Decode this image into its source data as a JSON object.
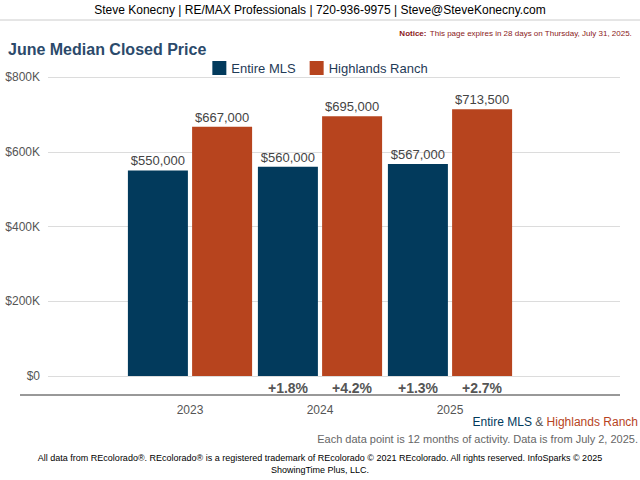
{
  "chart_data": {
    "type": "bar",
    "header": "Steve Konecny | RE/MAX Professionals | 720-936-9975 | Steve@SteveKonecny.com",
    "notice": {
      "label": "Notice:",
      "text": "This page expires in 28 days on Thursday, July 31, 2025."
    },
    "title": "June Median Closed Price",
    "categories": [
      "2023",
      "2024",
      "2025"
    ],
    "series": [
      {
        "name": "Entire MLS",
        "color": "#023a5c",
        "values": [
          550000,
          560000,
          567000
        ],
        "value_labels": [
          "$550,000",
          "$560,000",
          "$567,000"
        ],
        "change_labels": [
          null,
          "+1.8%",
          "+1.3%"
        ]
      },
      {
        "name": "Highlands Ranch",
        "color": "#b7441e",
        "values": [
          667000,
          695000,
          713500
        ],
        "value_labels": [
          "$667,000",
          "$695,000",
          "$713,500"
        ],
        "change_labels": [
          null,
          "+4.2%",
          "+2.7%"
        ]
      }
    ],
    "ylim": [
      0,
      800000
    ],
    "yticks": [
      {
        "value": 0,
        "label": "$0"
      },
      {
        "value": 200000,
        "label": "$200K"
      },
      {
        "value": 400000,
        "label": "$400K"
      },
      {
        "value": 600000,
        "label": "$600K"
      },
      {
        "value": 800000,
        "label": "$800K"
      }
    ],
    "grid": true,
    "legend": "top",
    "data_labels": true,
    "caption": [
      "Entire MLS",
      "&",
      "Highlands Ranch"
    ],
    "footnote": "Each data point is 12 months of activity. Data is from July 2, 2025.",
    "source": [
      "All data from REcolorado®. REcolorado® is a registered trademark of REcolorado © 2021 REcolorado. All rights reserved. InfoSparks © 2025",
      "ShowingTime Plus, LLC."
    ]
  }
}
